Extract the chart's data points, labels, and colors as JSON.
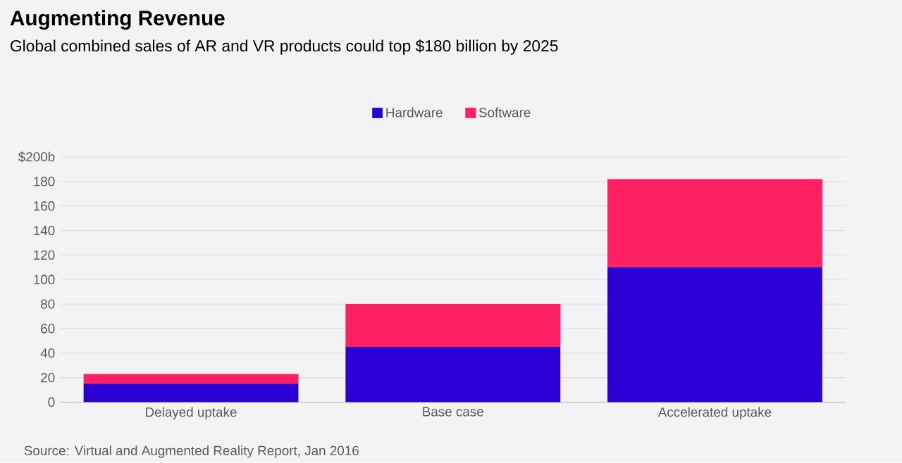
{
  "chart_data": {
    "type": "bar",
    "title": "Augmenting Revenue",
    "subtitle": "Global combined sales of AR and VR products could top $180 billion by 2025",
    "categories": [
      "Delayed uptake",
      "Base case",
      "Accelerated uptake"
    ],
    "series": [
      {
        "name": "Hardware",
        "color": "#2a00d4",
        "values": [
          15,
          45,
          110
        ]
      },
      {
        "name": "Software",
        "color": "#ff1f63",
        "values": [
          8,
          35,
          72
        ]
      }
    ],
    "stacked": true,
    "ylim": [
      0,
      200
    ],
    "yticks": [
      0,
      20,
      40,
      60,
      80,
      100,
      120,
      140,
      160,
      180,
      {
        "value": 200,
        "label": "$200b"
      }
    ],
    "grid": "y",
    "legend": "top",
    "annotations": [
      "Source: Virtual and Augmented Reality Report, Jan 2016"
    ]
  }
}
